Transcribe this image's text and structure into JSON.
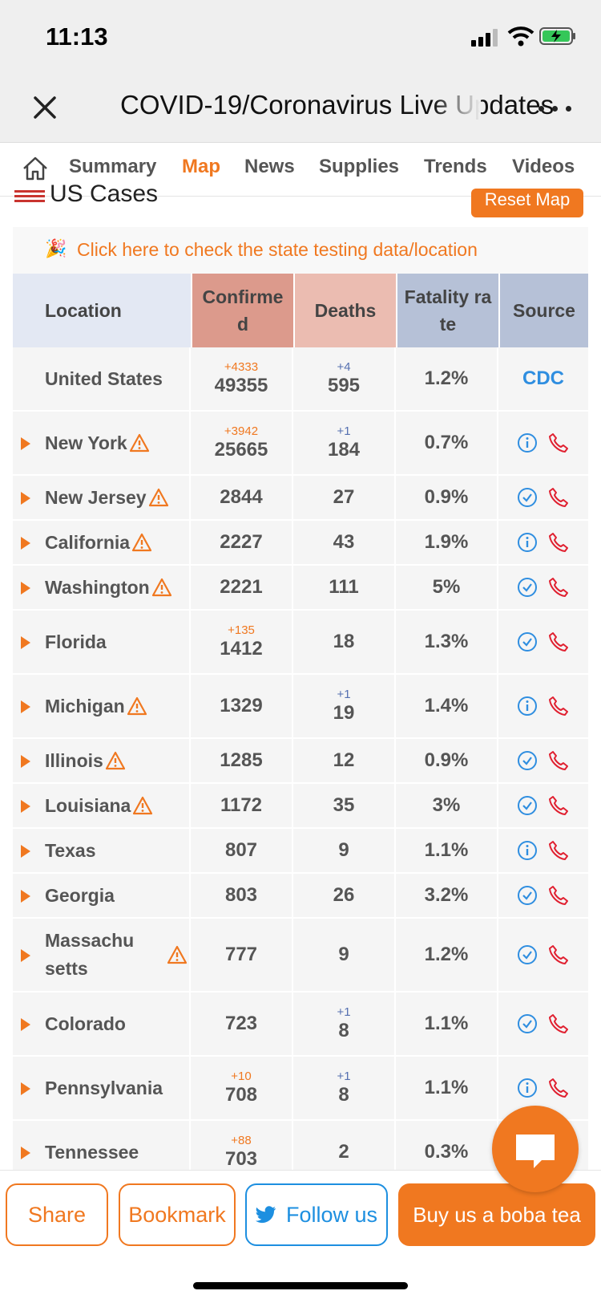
{
  "status": {
    "time": "11:13"
  },
  "header": {
    "title": "COVID-19/Coronavirus Live Updates"
  },
  "tabs": [
    {
      "label": "Summary"
    },
    {
      "label": "Map"
    },
    {
      "label": "News"
    },
    {
      "label": "Supplies"
    },
    {
      "label": "Trends"
    },
    {
      "label": "Videos"
    }
  ],
  "active_tab": "Map",
  "section": {
    "title": "US Cases",
    "reset_label": "Reset Map"
  },
  "banner": {
    "emoji": "🎉",
    "text": "Click here to check the state testing data/location"
  },
  "table": {
    "headers": [
      "Location",
      "Confirmed",
      "Deaths",
      "Fatality rate",
      "Source"
    ],
    "rows": [
      {
        "name": "United States",
        "confirmed": "49355",
        "confirmed_delta": "+4333",
        "deaths": "595",
        "deaths_delta": "+4",
        "rate": "1.2%",
        "source": "CDC"
      },
      {
        "name": "New York",
        "warn": true,
        "confirmed": "25665",
        "confirmed_delta": "+3942",
        "deaths": "184",
        "deaths_delta": "+1",
        "rate": "0.7%",
        "source_icon": "info-icon"
      },
      {
        "name": "New Jersey",
        "warn": true,
        "confirmed": "2844",
        "deaths": "27",
        "rate": "0.9%",
        "source_icon": "check-icon"
      },
      {
        "name": "California",
        "warn": true,
        "confirmed": "2227",
        "deaths": "43",
        "rate": "1.9%",
        "source_icon": "info-icon"
      },
      {
        "name": "Washington",
        "warn": true,
        "confirmed": "2221",
        "deaths": "111",
        "rate": "5%",
        "source_icon": "check-icon"
      },
      {
        "name": "Florida",
        "confirmed": "1412",
        "confirmed_delta": "+135",
        "deaths": "18",
        "rate": "1.3%",
        "source_icon": "check-icon"
      },
      {
        "name": "Michigan",
        "warn": true,
        "confirmed": "1329",
        "deaths": "19",
        "deaths_delta": "+1",
        "rate": "1.4%",
        "source_icon": "info-icon"
      },
      {
        "name": "Illinois",
        "warn": true,
        "confirmed": "1285",
        "deaths": "12",
        "rate": "0.9%",
        "source_icon": "check-icon"
      },
      {
        "name": "Louisiana",
        "warn": true,
        "confirmed": "1172",
        "deaths": "35",
        "rate": "3%",
        "source_icon": "check-icon"
      },
      {
        "name": "Texas",
        "confirmed": "807",
        "deaths": "9",
        "rate": "1.1%",
        "source_icon": "info-icon"
      },
      {
        "name": "Georgia",
        "confirmed": "803",
        "deaths": "26",
        "rate": "3.2%",
        "source_icon": "check-icon"
      },
      {
        "name": "Massachusetts",
        "warn": true,
        "confirmed": "777",
        "deaths": "9",
        "rate": "1.2%",
        "source_icon": "check-icon"
      },
      {
        "name": "Colorado",
        "confirmed": "723",
        "deaths": "8",
        "deaths_delta": "+1",
        "rate": "1.1%",
        "source_icon": "check-icon"
      },
      {
        "name": "Pennsylvania",
        "confirmed": "708",
        "confirmed_delta": "+10",
        "deaths": "8",
        "deaths_delta": "+1",
        "rate": "1.1%",
        "source_icon": "info-icon"
      },
      {
        "name": "Tennessee",
        "confirmed": "703",
        "confirmed_delta": "+88",
        "deaths": "2",
        "rate": "0.3%",
        "source_icon": "check-icon"
      }
    ]
  },
  "bottom": {
    "share": "Share",
    "bookmark": "Bookmark",
    "follow": "Follow us",
    "boba": "Buy us a boba tea"
  },
  "colors": {
    "accent": "#f07820",
    "header_location": "#e3e8f3",
    "header_confirmed": "#dc9a8c",
    "header_deaths": "#ebbcb1",
    "header_rate": "#b6c1d7",
    "header_source": "#b6c1d7",
    "link_blue": "#2f8ee0",
    "phone_red": "#e02030"
  }
}
